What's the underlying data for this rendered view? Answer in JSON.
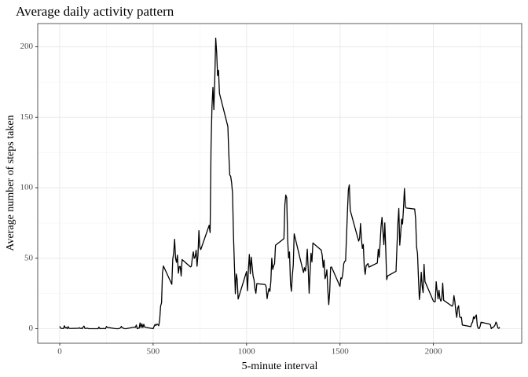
{
  "chart_data": {
    "type": "line",
    "title": "Average daily activity pattern",
    "x_label": "5-minute interval",
    "y_label": "Average number of steps taken",
    "xlim": [
      -117.75,
      2472.75
    ],
    "ylim": [
      -10.31,
      216.48
    ],
    "xticks": [
      0,
      500,
      1000,
      1500,
      2000
    ],
    "yticks": [
      0,
      50,
      100,
      150,
      200
    ],
    "x_minor_breaks": [
      250,
      750,
      1250,
      1750,
      2250
    ],
    "y_minor_breaks": [
      25,
      75,
      125,
      175
    ],
    "grid": true,
    "color": "#000000",
    "x": [
      0,
      5,
      10,
      15,
      20,
      25,
      30,
      35,
      40,
      45,
      50,
      55,
      100,
      105,
      110,
      115,
      120,
      125,
      130,
      135,
      140,
      145,
      150,
      155,
      200,
      205,
      210,
      215,
      220,
      225,
      230,
      235,
      240,
      245,
      250,
      255,
      300,
      305,
      310,
      315,
      320,
      325,
      330,
      335,
      340,
      345,
      350,
      355,
      400,
      405,
      410,
      415,
      420,
      425,
      430,
      435,
      440,
      445,
      450,
      455,
      500,
      505,
      510,
      515,
      520,
      525,
      530,
      535,
      540,
      545,
      550,
      555,
      600,
      605,
      610,
      615,
      620,
      625,
      630,
      635,
      640,
      645,
      650,
      655,
      700,
      705,
      710,
      715,
      720,
      725,
      730,
      735,
      740,
      745,
      750,
      755,
      800,
      805,
      810,
      815,
      820,
      825,
      830,
      835,
      840,
      845,
      850,
      855,
      900,
      905,
      910,
      915,
      920,
      925,
      930,
      935,
      940,
      945,
      950,
      955,
      1000,
      1005,
      1010,
      1015,
      1020,
      1025,
      1030,
      1035,
      1040,
      1045,
      1050,
      1055,
      1100,
      1105,
      1110,
      1115,
      1120,
      1125,
      1130,
      1135,
      1140,
      1145,
      1150,
      1155,
      1200,
      1205,
      1210,
      1215,
      1220,
      1225,
      1230,
      1235,
      1240,
      1245,
      1250,
      1255,
      1300,
      1305,
      1310,
      1315,
      1320,
      1325,
      1330,
      1335,
      1340,
      1345,
      1350,
      1355,
      1400,
      1405,
      1410,
      1415,
      1420,
      1425,
      1430,
      1435,
      1440,
      1445,
      1450,
      1455,
      1500,
      1505,
      1510,
      1515,
      1520,
      1525,
      1530,
      1535,
      1540,
      1545,
      1550,
      1555,
      1600,
      1605,
      1610,
      1615,
      1620,
      1625,
      1630,
      1635,
      1640,
      1645,
      1650,
      1655,
      1700,
      1705,
      1710,
      1715,
      1720,
      1725,
      1730,
      1735,
      1740,
      1745,
      1750,
      1755,
      1800,
      1805,
      1810,
      1815,
      1820,
      1825,
      1830,
      1835,
      1840,
      1845,
      1850,
      1855,
      1900,
      1905,
      1910,
      1915,
      1920,
      1925,
      1930,
      1935,
      1940,
      1945,
      1950,
      1955,
      2000,
      2005,
      2010,
      2015,
      2020,
      2025,
      2030,
      2035,
      2040,
      2045,
      2050,
      2055,
      2100,
      2105,
      2110,
      2115,
      2120,
      2125,
      2130,
      2135,
      2140,
      2145,
      2150,
      2155,
      2200,
      2205,
      2210,
      2215,
      2220,
      2225,
      2230,
      2235,
      2240,
      2245,
      2250,
      2255,
      2300,
      2305,
      2310,
      2315,
      2320,
      2325,
      2330,
      2335,
      2340,
      2345,
      2350,
      2355
    ],
    "values": [
      1.72,
      0.34,
      0.13,
      0.15,
      0.08,
      2.09,
      0.53,
      0.87,
      0,
      1.47,
      0.3,
      0.13,
      0.32,
      0.68,
      0.15,
      0.34,
      0,
      1.11,
      1.83,
      0.17,
      0.17,
      0.38,
      0.26,
      0,
      0,
      0,
      1.13,
      0,
      0,
      0.13,
      0,
      0.23,
      0,
      0,
      1.55,
      0.94,
      0,
      0,
      0,
      0,
      0.21,
      0.62,
      1.62,
      0.58,
      0.49,
      0.08,
      0,
      0,
      1.19,
      0.94,
      2.57,
      0,
      0.34,
      0.36,
      4.11,
      0.66,
      3.49,
      0.83,
      3.11,
      1.11,
      0,
      1.57,
      3,
      2.25,
      3.32,
      2.96,
      2.09,
      6.06,
      16.02,
      18.34,
      39.45,
      44.49,
      31.49,
      49.26,
      53.77,
      63.45,
      49.96,
      47.08,
      52.15,
      39.34,
      44.02,
      44.17,
      37.36,
      49.04,
      43.81,
      44.38,
      50.51,
      54.51,
      49.92,
      50.98,
      55.68,
      44.32,
      52.26,
      69.55,
      57.85,
      56.15,
      73.38,
      68.21,
      129.43,
      157.53,
      171.15,
      155.4,
      177.3,
      206.17,
      195.92,
      179.57,
      183.4,
      167.02,
      143.45,
      124.04,
      109.11,
      108.11,
      103.72,
      95.96,
      66.21,
      45.23,
      24.79,
      38.75,
      34.98,
      21.06,
      40.57,
      26.98,
      42.42,
      52.66,
      38.92,
      50.79,
      44.28,
      37.42,
      34.7,
      28.34,
      25.09,
      31.94,
      31.36,
      29.68,
      21.32,
      25.55,
      28.38,
      26.47,
      33.43,
      49.98,
      42.04,
      44.6,
      46.04,
      59.19,
      63.87,
      87.7,
      94.85,
      92.77,
      63.4,
      50.17,
      54.47,
      32.42,
      26.53,
      37.74,
      45.06,
      67.28,
      42.34,
      39.88,
      43.26,
      40.98,
      46.25,
      56.43,
      42.75,
      25.13,
      39.96,
      53.55,
      47.32,
      60.81,
      55.75,
      51.96,
      43.58,
      48.7,
      35.47,
      37.55,
      41.85,
      27.51,
      17.11,
      26.08,
      43.62,
      43.77,
      30.02,
      36.08,
      35.49,
      38.85,
      45.96,
      47.75,
      48.13,
      65.32,
      82.91,
      98.66,
      102.11,
      83.96,
      62.13,
      64.13,
      74.55,
      63.17,
      56.91,
      59.77,
      43.87,
      38.57,
      44.66,
      45.45,
      46.21,
      43.68,
      46.62,
      56.3,
      50.72,
      61.23,
      72.72,
      78.94,
      68.94,
      59.66,
      75.09,
      56.51,
      34.77,
      37.45,
      40.68,
      58.02,
      74.7,
      85.32,
      59.26,
      67.77,
      77.7,
      74.25,
      85.34,
      99.45,
      86.58,
      85.6,
      84.87,
      77.83,
      58.04,
      53.36,
      36.33,
      20.72,
      27.4,
      40.02,
      30.21,
      25.55,
      45.66,
      33.53,
      19.62,
      19.02,
      19.34,
      33.34,
      26.81,
      21.17,
      27.3,
      21.34,
      19.55,
      21.32,
      32.3,
      20.15,
      15.94,
      17.23,
      23.45,
      19.25,
      12.45,
      8.02,
      14.66,
      16.3,
      8.68,
      7.79,
      8.13,
      2.62,
      1.45,
      3.68,
      4.81,
      8.51,
      7.08,
      8.7,
      9.75,
      2.21,
      0.32,
      0.11,
      1.6,
      4.6,
      3.3,
      2.85,
      0,
      0.83,
      0.96,
      1.58,
      2.6,
      4.7,
      3.3,
      0.64,
      0.23,
      1.08
    ]
  }
}
